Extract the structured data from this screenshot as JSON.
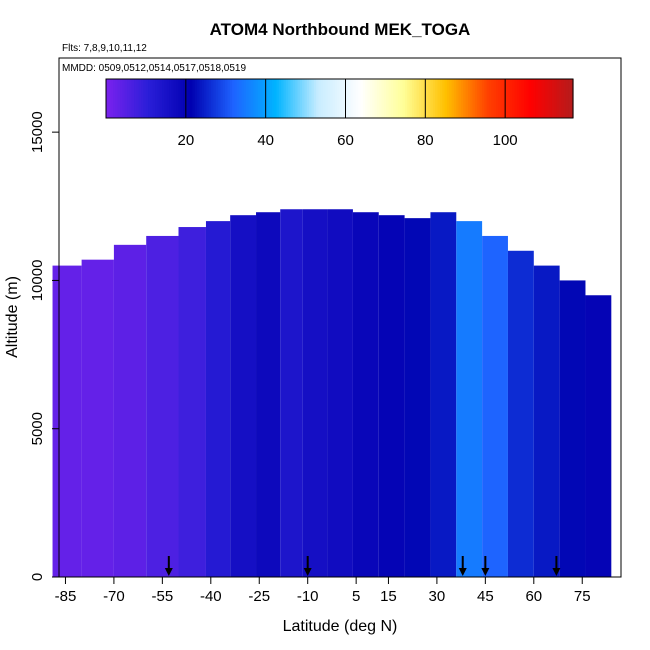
{
  "chart_data": {
    "type": "heatmap",
    "title": "ATOM4 Northbound MEK_TOGA",
    "subtitle_flights": "Flts: 7,8,9,10,11,12",
    "subtitle_dates": "MMDD: 0509,0512,0514,0517,0518,0519",
    "xlabel": "Latitude (deg N)",
    "ylabel": "Altitude (m)",
    "xlim": [
      -87,
      87
    ],
    "ylim": [
      0,
      17500
    ],
    "x_ticks": [
      "-85",
      "-70",
      "-55",
      "-40",
      "-25",
      "-10",
      "5",
      "15",
      "30",
      "45",
      "60",
      "75"
    ],
    "x_tick_values": [
      -85,
      -70,
      -55,
      -40,
      -25,
      -10,
      5,
      15,
      30,
      45,
      60,
      75
    ],
    "y_ticks": [
      "0",
      "5000",
      "10000",
      "15000"
    ],
    "y_tick_values": [
      0,
      5000,
      10000,
      15000
    ],
    "colorbar": {
      "ticks": [
        "20",
        "40",
        "60",
        "80",
        "100"
      ],
      "tick_values": [
        20,
        40,
        60,
        80,
        100
      ],
      "range": [
        0,
        117
      ],
      "colors": [
        "#7b22ee",
        "#2a1ed8",
        "#0000b0",
        "#1e63ff",
        "#00b4ff",
        "#c8ecff",
        "#ffffff",
        "#ffff99",
        "#ffc000",
        "#ff4000",
        "#ff0000",
        "#b51c1c"
      ]
    },
    "arrow_latitudes": [
      -53,
      -10,
      38,
      45,
      67
    ],
    "column_profiles": [
      {
        "lat": -85,
        "top": 10500,
        "value": 3
      },
      {
        "lat": -75,
        "top": 10700,
        "value": 3
      },
      {
        "lat": -65,
        "top": 11200,
        "value": 4
      },
      {
        "lat": -55,
        "top": 11500,
        "value": 6
      },
      {
        "lat": -45,
        "top": 11800,
        "value": 8
      },
      {
        "lat": -38,
        "top": 12000,
        "value": 12
      },
      {
        "lat": -30,
        "top": 12200,
        "value": 16
      },
      {
        "lat": -22,
        "top": 12300,
        "value": 18
      },
      {
        "lat": -15,
        "top": 12400,
        "value": 14
      },
      {
        "lat": -8,
        "top": 12400,
        "value": 16
      },
      {
        "lat": 0,
        "top": 12400,
        "value": 17
      },
      {
        "lat": 8,
        "top": 12300,
        "value": 19
      },
      {
        "lat": 16,
        "top": 12200,
        "value": 20
      },
      {
        "lat": 24,
        "top": 12100,
        "value": 22
      },
      {
        "lat": 32,
        "top": 12300,
        "value": 24
      },
      {
        "lat": 40,
        "top": 12000,
        "value": 35
      },
      {
        "lat": 48,
        "top": 11500,
        "value": 32
      },
      {
        "lat": 56,
        "top": 11000,
        "value": 26
      },
      {
        "lat": 64,
        "top": 10500,
        "value": 24
      },
      {
        "lat": 72,
        "top": 10000,
        "value": 22
      },
      {
        "lat": 80,
        "top": 9500,
        "value": 20
      }
    ],
    "grid": false,
    "legend": "colorbar top"
  }
}
